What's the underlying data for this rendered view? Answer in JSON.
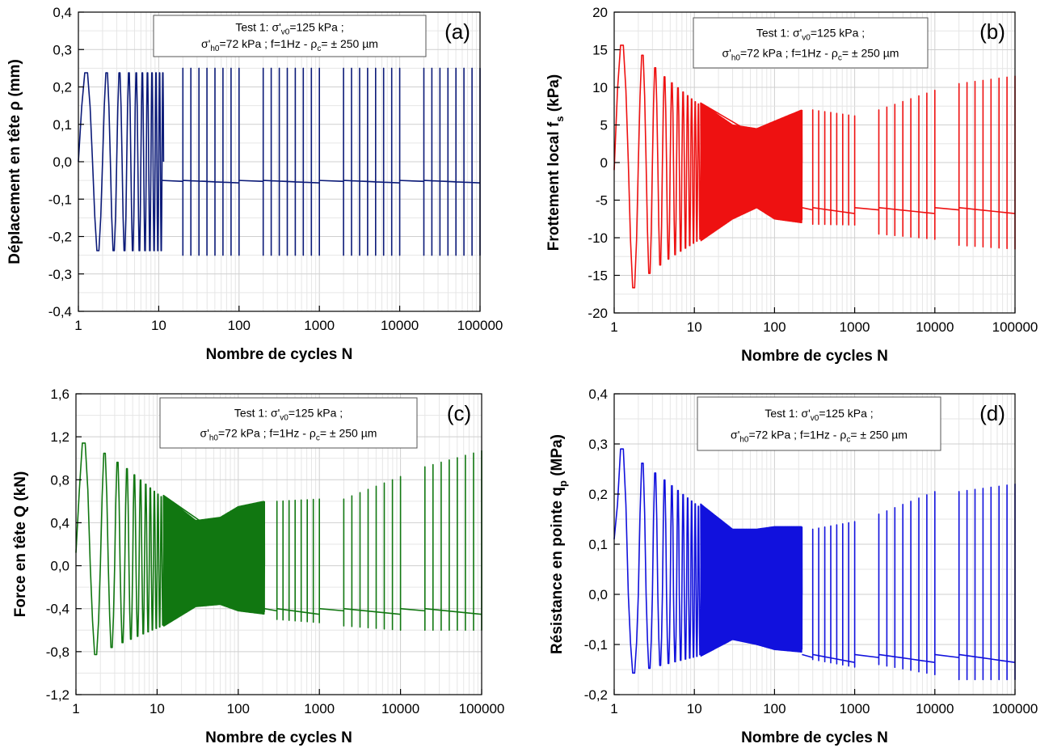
{
  "chart_data": [
    {
      "id": "a",
      "type": "line",
      "panel_tag": "(a)",
      "xlabel": "Nombre de cycles N",
      "ylabel": "Déplacement en tête ρ (mm)",
      "xscale": "log",
      "xlim": [
        1,
        100000
      ],
      "ylim": [
        -0.4,
        0.4
      ],
      "xticks": [
        "1",
        "10",
        "100",
        "1000",
        "10000",
        "100000"
      ],
      "yticks": [
        "0,4",
        "0,3",
        "0,2",
        "0,1",
        "0,0",
        "-0,1",
        "-0,2",
        "-0,3",
        "-0,4"
      ],
      "grid": true,
      "color": "#0b1a78",
      "annotation": {
        "line1": "Test 1: σ'v0=125 kPa ;",
        "line2": "σ'h0=72 kPa ; f=1Hz - ρc= ± 250 µm",
        "line1_parts": {
          "pre": "Test 1: σ'",
          "sub": "v0",
          "post": "=125 kPa ;"
        },
        "line2_parts": {
          "pre": "σ'",
          "sub": "h0",
          "mid": "=72 kPa ; f=1Hz - ρ",
          "sub2": "c",
          "post": "= ± 250 µm"
        }
      },
      "series": [
        {
          "segments": [
            {
              "from": 1,
              "to": 11,
              "envelope": [
                [
                  1,
                  0.25,
                  -0.25
                ],
                [
                  11,
                  0.25,
                  -0.25
                ]
              ]
            },
            {
              "from": 20,
              "to": 100,
              "envelope": [
                [
                  20,
                  0.25,
                  -0.25
                ],
                [
                  100,
                  0.25,
                  -0.25
                ]
              ]
            },
            {
              "from": 200,
              "to": 1000,
              "envelope": [
                [
                  200,
                  0.25,
                  -0.25
                ],
                [
                  1000,
                  0.25,
                  -0.25
                ]
              ]
            },
            {
              "from": 2000,
              "to": 10000,
              "envelope": [
                [
                  2000,
                  0.25,
                  -0.25
                ],
                [
                  10000,
                  0.25,
                  -0.25
                ]
              ]
            },
            {
              "from": 20000,
              "to": 100000,
              "envelope": [
                [
                  20000,
                  0.25,
                  -0.25
                ],
                [
                  100000,
                  0.25,
                  -0.25
                ]
              ]
            }
          ],
          "start_value": 0.0,
          "baseline": -0.05
        }
      ]
    },
    {
      "id": "b",
      "type": "line",
      "panel_tag": "(b)",
      "xlabel": "Nombre de cycles N",
      "ylabel": "Frottement local fs (kPa)",
      "ylabel_parts": {
        "pre": "Frottement local f",
        "sub": "s",
        "post": " (kPa)"
      },
      "xscale": "log",
      "xlim": [
        1,
        100000
      ],
      "ylim": [
        -20,
        20
      ],
      "xticks": [
        "1",
        "10",
        "100",
        "1000",
        "10000",
        "100000"
      ],
      "yticks": [
        "20",
        "15",
        "10",
        "5",
        "0",
        "-5",
        "-10",
        "-15",
        "-20"
      ],
      "grid": true,
      "color": "#ee1111",
      "annotation": {
        "line1": "Test 1: σ'v0=125 kPa ;",
        "line2": "σ'h0=72 kPa ; f=1Hz - ρc= ± 250 µm",
        "line1_parts": {
          "pre": "Test 1: σ'",
          "sub": "v0",
          "post": "=125 kPa ;"
        },
        "line2_parts": {
          "pre": "σ'",
          "sub": "h0",
          "mid": "=72 kPa ; f=1Hz - ρ",
          "sub2": "c",
          "post": "= ± 250 µm"
        }
      },
      "series": [
        {
          "segments": [
            {
              "from": 1,
              "to": 220,
              "envelope": [
                [
                  1,
                  16.4,
                  -17.5
                ],
                [
                  2,
                  15,
                  -15.5
                ],
                [
                  4,
                  12,
                  -13.5
                ],
                [
                  10,
                  8.5,
                  -11
                ],
                [
                  30,
                  5,
                  -7.5
                ],
                [
                  60,
                  4.5,
                  -6
                ],
                [
                  100,
                  5.5,
                  -7.5
                ],
                [
                  220,
                  7,
                  -8
                ]
              ]
            },
            {
              "from": 300,
              "to": 1000,
              "envelope": [
                [
                  300,
                  7,
                  -8.2
                ],
                [
                  1000,
                  6.2,
                  -8.3
                ]
              ]
            },
            {
              "from": 2000,
              "to": 10000,
              "envelope": [
                [
                  2000,
                  7,
                  -9.5
                ],
                [
                  10000,
                  9.6,
                  -10.2
                ]
              ]
            },
            {
              "from": 20000,
              "to": 100000,
              "envelope": [
                [
                  20000,
                  10.5,
                  -11
                ],
                [
                  100000,
                  11.5,
                  -11.5
                ]
              ]
            }
          ],
          "start_value": -1,
          "baseline": -6
        }
      ]
    },
    {
      "id": "c",
      "type": "line",
      "panel_tag": "(c)",
      "xlabel": "Nombre de cycles N",
      "ylabel": "Force en tête Q (kN)",
      "xscale": "log",
      "xlim": [
        1,
        100000
      ],
      "ylim": [
        -1.2,
        1.6
      ],
      "xticks": [
        "1",
        "10",
        "100",
        "1000",
        "10000",
        "100000"
      ],
      "yticks": [
        "1,6",
        "1,2",
        "0,8",
        "0,4",
        "0,0",
        "-0,4",
        "-0,8",
        "-1,2"
      ],
      "grid": true,
      "color": "#117711",
      "annotation": {
        "line1": "Test 1: σ'v0=125 kPa ;",
        "line2": "σ'h0=72 kPa ; f=1Hz - ρc= ± 250 µm",
        "line1_parts": {
          "pre": "Test 1: σ'",
          "sub": "v0",
          "post": "=125 kPa ;"
        },
        "line2_parts": {
          "pre": "σ'",
          "sub": "h0",
          "mid": "=72 kPa ; f=1Hz - ρ",
          "sub2": "c",
          "post": "= ± 250 µm"
        }
      },
      "series": [
        {
          "segments": [
            {
              "from": 1,
              "to": 210,
              "envelope": [
                [
                  1,
                  1.2,
                  -0.87
                ],
                [
                  2,
                  1.1,
                  -0.8
                ],
                [
                  4,
                  0.95,
                  -0.72
                ],
                [
                  10,
                  0.7,
                  -0.6
                ],
                [
                  30,
                  0.42,
                  -0.38
                ],
                [
                  60,
                  0.45,
                  -0.36
                ],
                [
                  100,
                  0.55,
                  -0.42
                ],
                [
                  210,
                  0.6,
                  -0.45
                ]
              ]
            },
            {
              "from": 300,
              "to": 1000,
              "envelope": [
                [
                  300,
                  0.6,
                  -0.5
                ],
                [
                  1000,
                  0.62,
                  -0.53
                ]
              ]
            },
            {
              "from": 2000,
              "to": 10000,
              "envelope": [
                [
                  2000,
                  0.62,
                  -0.56
                ],
                [
                  10000,
                  0.83,
                  -0.6
                ]
              ]
            },
            {
              "from": 20000,
              "to": 100000,
              "envelope": [
                [
                  20000,
                  0.92,
                  -0.6
                ],
                [
                  100000,
                  1.07,
                  -0.6
                ]
              ]
            }
          ],
          "start_value": 0.12,
          "baseline": -0.4
        }
      ]
    },
    {
      "id": "d",
      "type": "line",
      "panel_tag": "(d)",
      "xlabel": "Nombre de cycles N",
      "ylabel": "Résistance en pointe qp (MPa)",
      "ylabel_parts": {
        "pre": "Résistance en pointe q",
        "sub": "p",
        "post": " (MPa)"
      },
      "xscale": "log",
      "xlim": [
        1,
        100000
      ],
      "ylim": [
        -0.2,
        0.4
      ],
      "xticks": [
        "1",
        "10",
        "100",
        "1000",
        "10000",
        "100000"
      ],
      "yticks": [
        "0,4",
        "0,3",
        "0,2",
        "0,1",
        "0,0",
        "-0,1",
        "-0,2"
      ],
      "grid": true,
      "color": "#1111dd",
      "annotation": {
        "line1": "Test 1: σ'v0=125 kPa ;",
        "line2": "σ'h0=72 kPa ; f=1Hz - ρc= ± 250 µm",
        "line1_parts": {
          "pre": "Test 1: σ'",
          "sub": "v0",
          "post": "=125 kPa ;"
        },
        "line2_parts": {
          "pre": "σ'",
          "sub": "h0",
          "mid": "=72 kPa ; f=1Hz - ρ",
          "sub2": "c",
          "post": "= ± 250 µm"
        }
      },
      "series": [
        {
          "segments": [
            {
              "from": 1,
              "to": 220,
              "envelope": [
                [
                  1,
                  0.305,
                  -0.165
                ],
                [
                  2,
                  0.275,
                  -0.155
                ],
                [
                  4,
                  0.24,
                  -0.145
                ],
                [
                  10,
                  0.19,
                  -0.13
                ],
                [
                  30,
                  0.13,
                  -0.09
                ],
                [
                  60,
                  0.13,
                  -0.1
                ],
                [
                  100,
                  0.135,
                  -0.11
                ],
                [
                  220,
                  0.135,
                  -0.115
                ]
              ]
            },
            {
              "from": 300,
              "to": 1000,
              "envelope": [
                [
                  300,
                  0.13,
                  -0.13
                ],
                [
                  1000,
                  0.145,
                  -0.145
                ]
              ]
            },
            {
              "from": 2000,
              "to": 10000,
              "envelope": [
                [
                  2000,
                  0.16,
                  -0.14
                ],
                [
                  10000,
                  0.205,
                  -0.16
                ]
              ]
            },
            {
              "from": 20000,
              "to": 100000,
              "envelope": [
                [
                  20000,
                  0.205,
                  -0.17
                ],
                [
                  100000,
                  0.22,
                  -0.17
                ]
              ]
            }
          ],
          "start_value": 0.11,
          "baseline": -0.12
        }
      ]
    }
  ]
}
